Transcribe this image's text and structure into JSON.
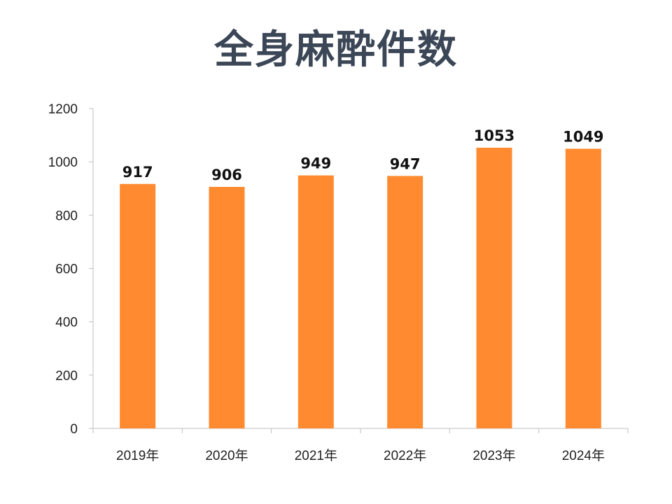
{
  "title": "全身麻酔件数",
  "chart_data": {
    "type": "bar",
    "title": "全身麻酔件数",
    "categories": [
      "2019年",
      "2020年",
      "2021年",
      "2022年",
      "2023年",
      "2024年"
    ],
    "values": [
      917,
      906,
      949,
      947,
      1053,
      1049
    ],
    "ylim": [
      0,
      1200
    ],
    "yticks": [
      0,
      200,
      400,
      600,
      800,
      1000,
      1200
    ],
    "xlabel": "",
    "ylabel": "",
    "grid": false,
    "legend": "none",
    "data_labels": true,
    "bar_color": "#FF8A2F",
    "axis_color": "#bfbfbf"
  }
}
